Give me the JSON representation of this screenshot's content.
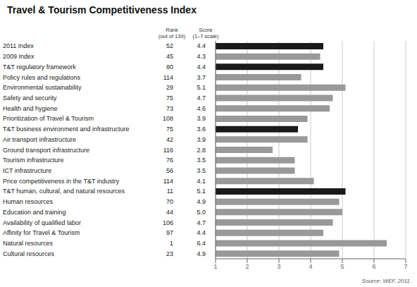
{
  "chart_data": {
    "type": "bar",
    "orientation": "horizontal",
    "title": "Travel & Tourism Competitiveness Index",
    "annotations": [
      "Rank\n(out of 139)",
      "Score\n(1–7 scale)",
      "Source: WEF, 2011."
    ],
    "categories": [
      "2011 Index",
      "2009 Index",
      "T&T regulatory framework",
      "Policy rules and regulations",
      "Environmental sustainability",
      "Safety and security",
      "Health and hygiene",
      "Prioritization of Travel & Tourism",
      "T&T business environment and infrastructure",
      "Air transport infrastructure",
      "Ground transport infrastructure",
      "Tourism infrastructure",
      "ICT infrastructure",
      "Price competitiveness in the T&T industry",
      "T&T human, cultural, and natural resources",
      "Human resources",
      "Education and training",
      "Availability of qualified labor",
      "Affinity for Travel & Tourism",
      "Natural resources",
      "Cultural resources"
    ],
    "values": [
      4.4,
      4.3,
      4.4,
      3.7,
      5.1,
      4.7,
      4.6,
      3.9,
      3.6,
      3.9,
      2.8,
      3.5,
      3.5,
      4.1,
      5.1,
      4.9,
      5.0,
      4.7,
      4.4,
      6.4,
      4.9
    ],
    "value_labels": [
      "4.4",
      "4.3",
      "4.4",
      "3.7",
      "5.1",
      "4.7",
      "4.6",
      "3.9",
      "3.6",
      "3.9",
      "2.8",
      "3.5",
      "3.5",
      "4.1",
      "5.1",
      "4.9",
      "5.0",
      "4.7",
      "4.4",
      "6.4",
      "4.9"
    ],
    "ranks": [
      52,
      45,
      80,
      114,
      29,
      75,
      73,
      108,
      75,
      42,
      116,
      76,
      56,
      114,
      11,
      70,
      44,
      106,
      97,
      1,
      23
    ],
    "colors": [
      "#1a1a1a",
      "#999999",
      "#1a1a1a",
      "#999999",
      "#999999",
      "#999999",
      "#999999",
      "#999999",
      "#1a1a1a",
      "#999999",
      "#999999",
      "#999999",
      "#999999",
      "#999999",
      "#1a1a1a",
      "#999999",
      "#999999",
      "#999999",
      "#999999",
      "#999999",
      "#999999"
    ],
    "xlim": [
      1,
      7
    ],
    "xticks": [
      1,
      2,
      3,
      4,
      5,
      6,
      7
    ],
    "grid": true,
    "data_labels": true
  }
}
